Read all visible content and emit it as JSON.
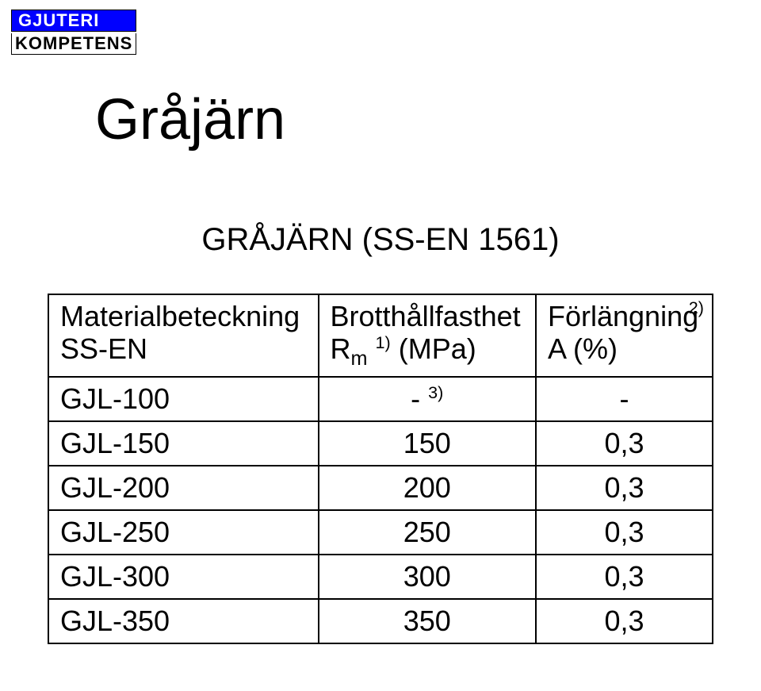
{
  "logo": {
    "top": "GJUTERI",
    "bottom": "KOMPETENS"
  },
  "title": "Gråjärn",
  "subtitle": "GRÅJÄRN (SS-EN 1561)",
  "columns": {
    "material": {
      "line1": "Materialbeteckning",
      "line2": "SS-EN"
    },
    "rm": {
      "line1": "Brotthållfasthet",
      "line2_prefix": "R",
      "line2_sub": "m",
      "line2_sup": "1)",
      "line2_suffix": " (MPa)"
    },
    "elong": {
      "line1": "Förlängning",
      "sup": "2)",
      "line2": "A (%)"
    }
  },
  "footnote3": "3)",
  "rows": [
    {
      "mat": "GJL-100",
      "rm": "-",
      "rm_has_fn3": true,
      "a": "-"
    },
    {
      "mat": "GJL-150",
      "rm": "150",
      "rm_has_fn3": false,
      "a": "0,3"
    },
    {
      "mat": "GJL-200",
      "rm": "200",
      "rm_has_fn3": false,
      "a": "0,3"
    },
    {
      "mat": "GJL-250",
      "rm": "250",
      "rm_has_fn3": false,
      "a": "0,3"
    },
    {
      "mat": "GJL-300",
      "rm": "300",
      "rm_has_fn3": false,
      "a": "0,3"
    },
    {
      "mat": "GJL-350",
      "rm": "350",
      "rm_has_fn3": false,
      "a": "0,3"
    }
  ]
}
